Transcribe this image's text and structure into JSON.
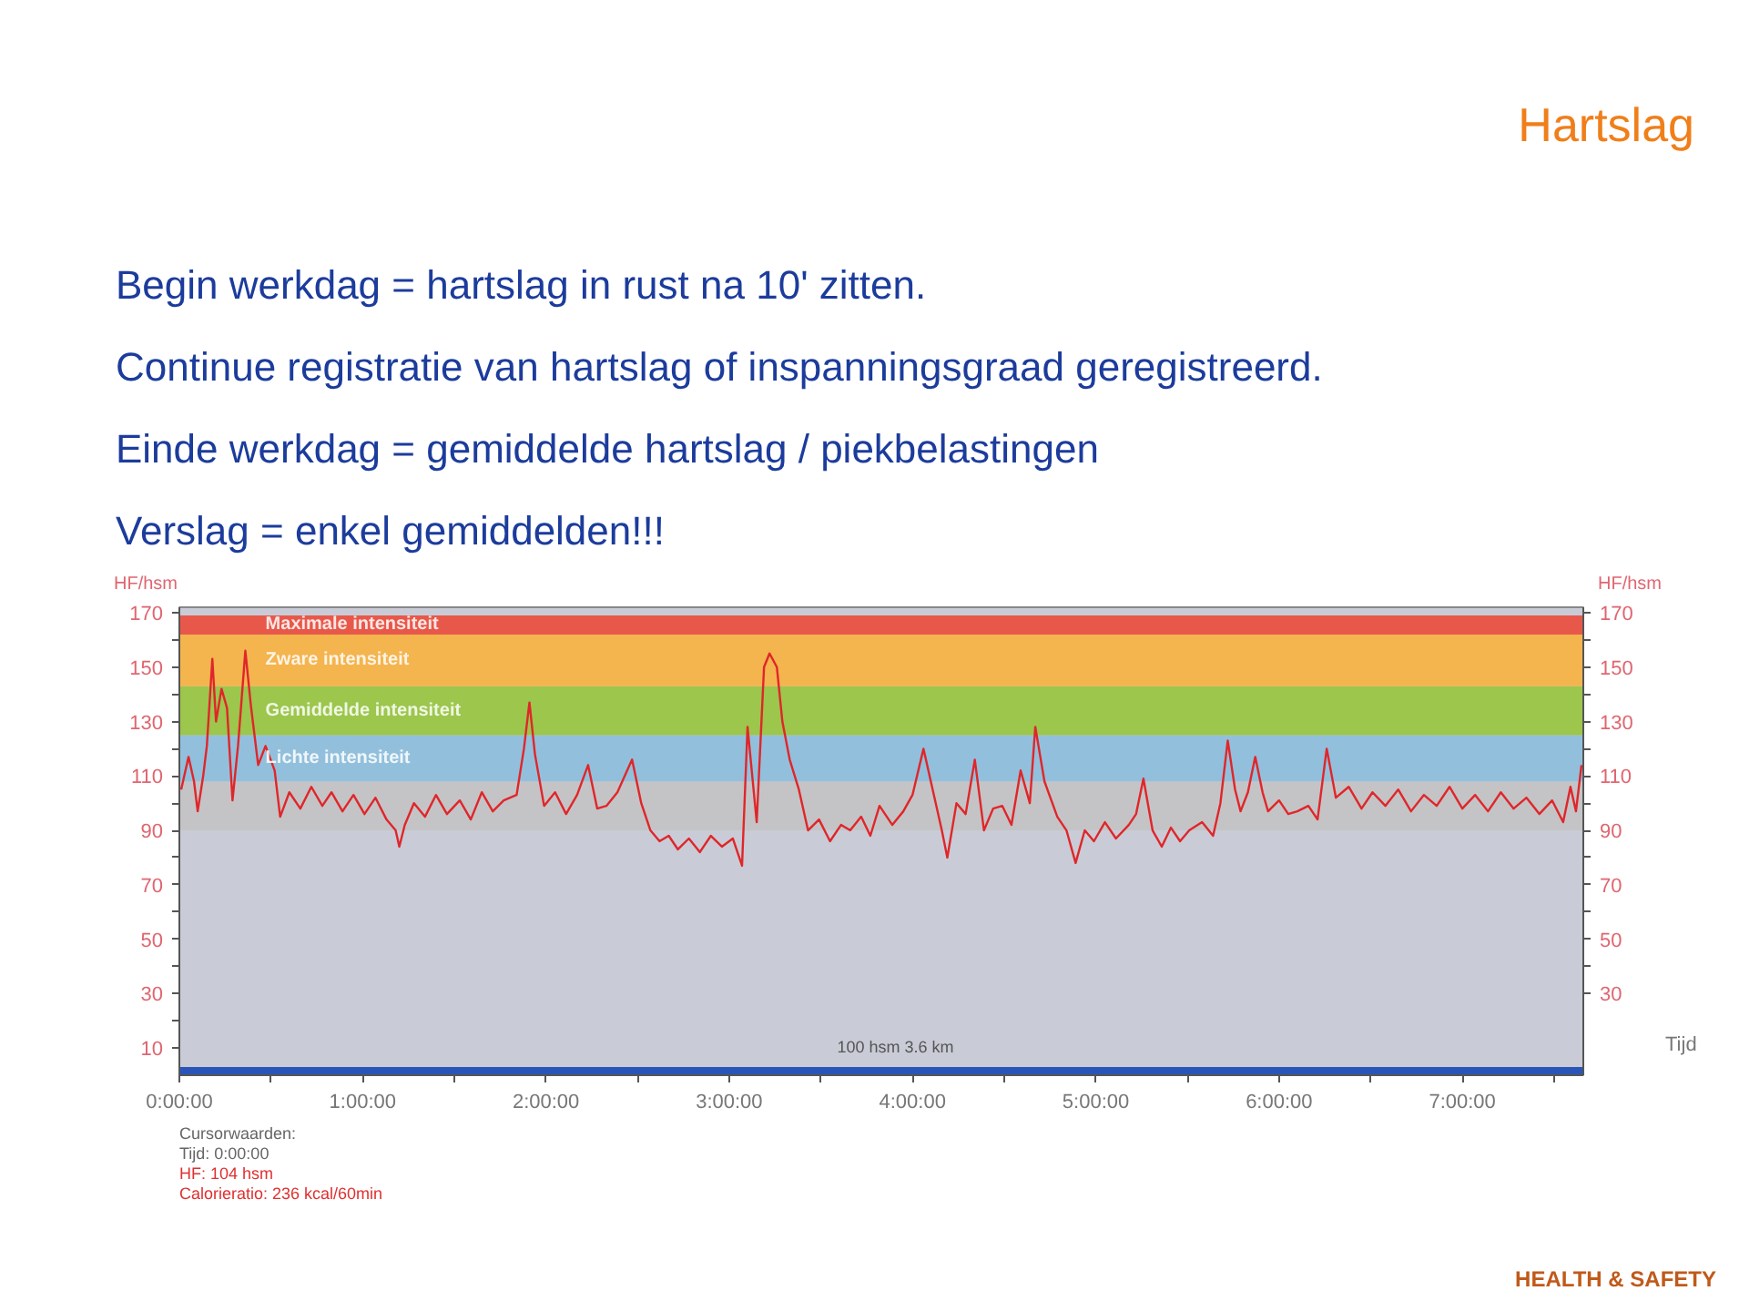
{
  "chart_data": {
    "type": "line",
    "title": "Hartslag",
    "ylabel": "HF/hsm",
    "y2label": "HF/hsm",
    "xlabel": "Tijd",
    "annotations": [
      "Begin werkdag = hartslag in rust na 10' zitten.",
      "Continue registratie van hartslag of inspanningsgraad geregistreerd.",
      "Einde werkdag = gemiddelde hartslag / piekbelastingen",
      "Verslag = enkel gemiddelden!!!",
      "100 hsm 3.6 km",
      "Cursorwaarden:",
      "Tijd: 0:00:00",
      "HF: 104 hsm",
      "Calorieratio: 236 kcal/60min",
      "HEALTH & SAFETY"
    ],
    "xlim": [
      0,
      7.66
    ],
    "ylim": [
      0,
      172
    ],
    "y2lim": [
      0,
      172
    ],
    "xticks": [
      {
        "value": 0,
        "label": "0:00:00"
      },
      {
        "value": 0.5,
        "label": null
      },
      {
        "value": 1,
        "label": "1:00:00"
      },
      {
        "value": 1.5,
        "label": null
      },
      {
        "value": 2,
        "label": "2:00:00"
      },
      {
        "value": 2.5,
        "label": null
      },
      {
        "value": 3,
        "label": "3:00:00"
      },
      {
        "value": 3.5,
        "label": null
      },
      {
        "value": 4,
        "label": "4:00:00"
      },
      {
        "value": 4.5,
        "label": null
      },
      {
        "value": 5,
        "label": "5:00:00"
      },
      {
        "value": 5.5,
        "label": null
      },
      {
        "value": 6,
        "label": "6:00:00"
      },
      {
        "value": 6.5,
        "label": null
      },
      {
        "value": 7,
        "label": "7:00:00"
      },
      {
        "value": 7.5,
        "label": null
      }
    ],
    "yticks": [
      10,
      {
        "value": 20,
        "label": null
      },
      30,
      {
        "value": 40,
        "label": null
      },
      50,
      {
        "value": 60,
        "label": null
      },
      70,
      {
        "value": 80,
        "label": null
      },
      90,
      {
        "value": 100,
        "label": null
      },
      110,
      {
        "value": 120,
        "label": null
      },
      130,
      {
        "value": 140,
        "label": null
      },
      150,
      {
        "value": 160,
        "label": null
      },
      170
    ],
    "y2ticks": [
      30,
      {
        "value": 40,
        "label": null
      },
      50,
      {
        "value": 60,
        "label": null
      },
      70,
      {
        "value": 80,
        "label": null
      },
      90,
      {
        "value": 100,
        "label": null
      },
      110,
      {
        "value": 120,
        "label": null
      },
      130,
      {
        "value": 140,
        "label": null
      },
      150,
      {
        "value": 160,
        "label": null
      },
      170
    ],
    "bands": [
      {
        "axis": "y",
        "from": 0,
        "to": 3,
        "label": null,
        "color": "#2a55b8"
      },
      {
        "axis": "y",
        "from": 90,
        "to": 108,
        "label": null,
        "color": "#c4c4c6"
      },
      {
        "axis": "y",
        "from": 108,
        "to": 125,
        "label": "Lichte intensiteit",
        "color": "#92c0dc"
      },
      {
        "axis": "y",
        "from": 125,
        "to": 143,
        "label": "Gemiddelde intensiteit",
        "color": "#9cc64c"
      },
      {
        "axis": "y",
        "from": 143,
        "to": 162,
        "label": "Zware intensiteit",
        "color": "#f4b44e"
      },
      {
        "axis": "y",
        "from": 162,
        "to": 169,
        "label": "Maximale intensiteit",
        "color": "#e8584a"
      }
    ],
    "series": [
      {
        "color": "#e0262a",
        "x": [
          0.01,
          0.05,
          0.08,
          0.1,
          0.13,
          0.15,
          0.18,
          0.2,
          0.23,
          0.26,
          0.29,
          0.32,
          0.36,
          0.39,
          0.43,
          0.47,
          0.52,
          0.55,
          0.6,
          0.66,
          0.72,
          0.78,
          0.83,
          0.89,
          0.95,
          1.01,
          1.07,
          1.13,
          1.18,
          1.2,
          1.23,
          1.28,
          1.34,
          1.4,
          1.46,
          1.53,
          1.59,
          1.65,
          1.71,
          1.77,
          1.84,
          1.88,
          1.91,
          1.94,
          1.99,
          2.05,
          2.11,
          2.17,
          2.23,
          2.28,
          2.33,
          2.39,
          2.47,
          2.52,
          2.57,
          2.62,
          2.67,
          2.72,
          2.78,
          2.84,
          2.9,
          2.96,
          3.02,
          3.07,
          3.1,
          3.15,
          3.19,
          3.22,
          3.26,
          3.29,
          3.33,
          3.38,
          3.43,
          3.49,
          3.55,
          3.61,
          3.66,
          3.72,
          3.77,
          3.82,
          3.89,
          3.95,
          4.0,
          4.06,
          4.11,
          4.16,
          4.19,
          4.24,
          4.29,
          4.34,
          4.39,
          4.44,
          4.49,
          4.54,
          4.59,
          4.64,
          4.67,
          4.72,
          4.79,
          4.84,
          4.89,
          4.94,
          4.99,
          5.05,
          5.11,
          5.18,
          5.22,
          5.26,
          5.31,
          5.36,
          5.41,
          5.46,
          5.51,
          5.58,
          5.64,
          5.68,
          5.72,
          5.76,
          5.79,
          5.83,
          5.87,
          5.91,
          5.94,
          6.0,
          6.05,
          6.1,
          6.16,
          6.21,
          6.26,
          6.31,
          6.38,
          6.45,
          6.51,
          6.58,
          6.65,
          6.72,
          6.79,
          6.86,
          6.93,
          7.0,
          7.07,
          7.14,
          7.21,
          7.28,
          7.35,
          7.42,
          7.49,
          7.55,
          7.59,
          7.62,
          7.65
        ],
        "values": [
          105,
          117,
          108,
          97,
          110,
          121,
          153,
          130,
          142,
          135,
          101,
          121,
          156,
          136,
          114,
          121,
          112,
          95,
          104,
          98,
          106,
          99,
          104,
          97,
          103,
          96,
          102,
          94,
          90,
          84,
          92,
          100,
          95,
          103,
          96,
          101,
          94,
          104,
          97,
          101,
          103,
          120,
          137,
          118,
          99,
          104,
          96,
          103,
          114,
          98,
          99,
          104,
          116,
          100,
          90,
          86,
          88,
          83,
          87,
          82,
          88,
          84,
          87,
          77,
          128,
          93,
          150,
          155,
          150,
          130,
          116,
          105,
          90,
          94,
          86,
          92,
          90,
          95,
          88,
          99,
          92,
          97,
          103,
          120,
          105,
          90,
          80,
          100,
          96,
          116,
          90,
          98,
          99,
          92,
          112,
          100,
          128,
          108,
          95,
          90,
          78,
          90,
          86,
          93,
          87,
          92,
          96,
          109,
          90,
          84,
          91,
          86,
          90,
          93,
          88,
          100,
          123,
          105,
          97,
          104,
          117,
          104,
          97,
          101,
          96,
          97,
          99,
          94,
          120,
          102,
          106,
          98,
          104,
          99,
          105,
          97,
          103,
          99,
          106,
          98,
          103,
          97,
          104,
          98,
          102,
          96,
          101,
          93,
          106,
          97,
          114
        ]
      }
    ]
  }
}
